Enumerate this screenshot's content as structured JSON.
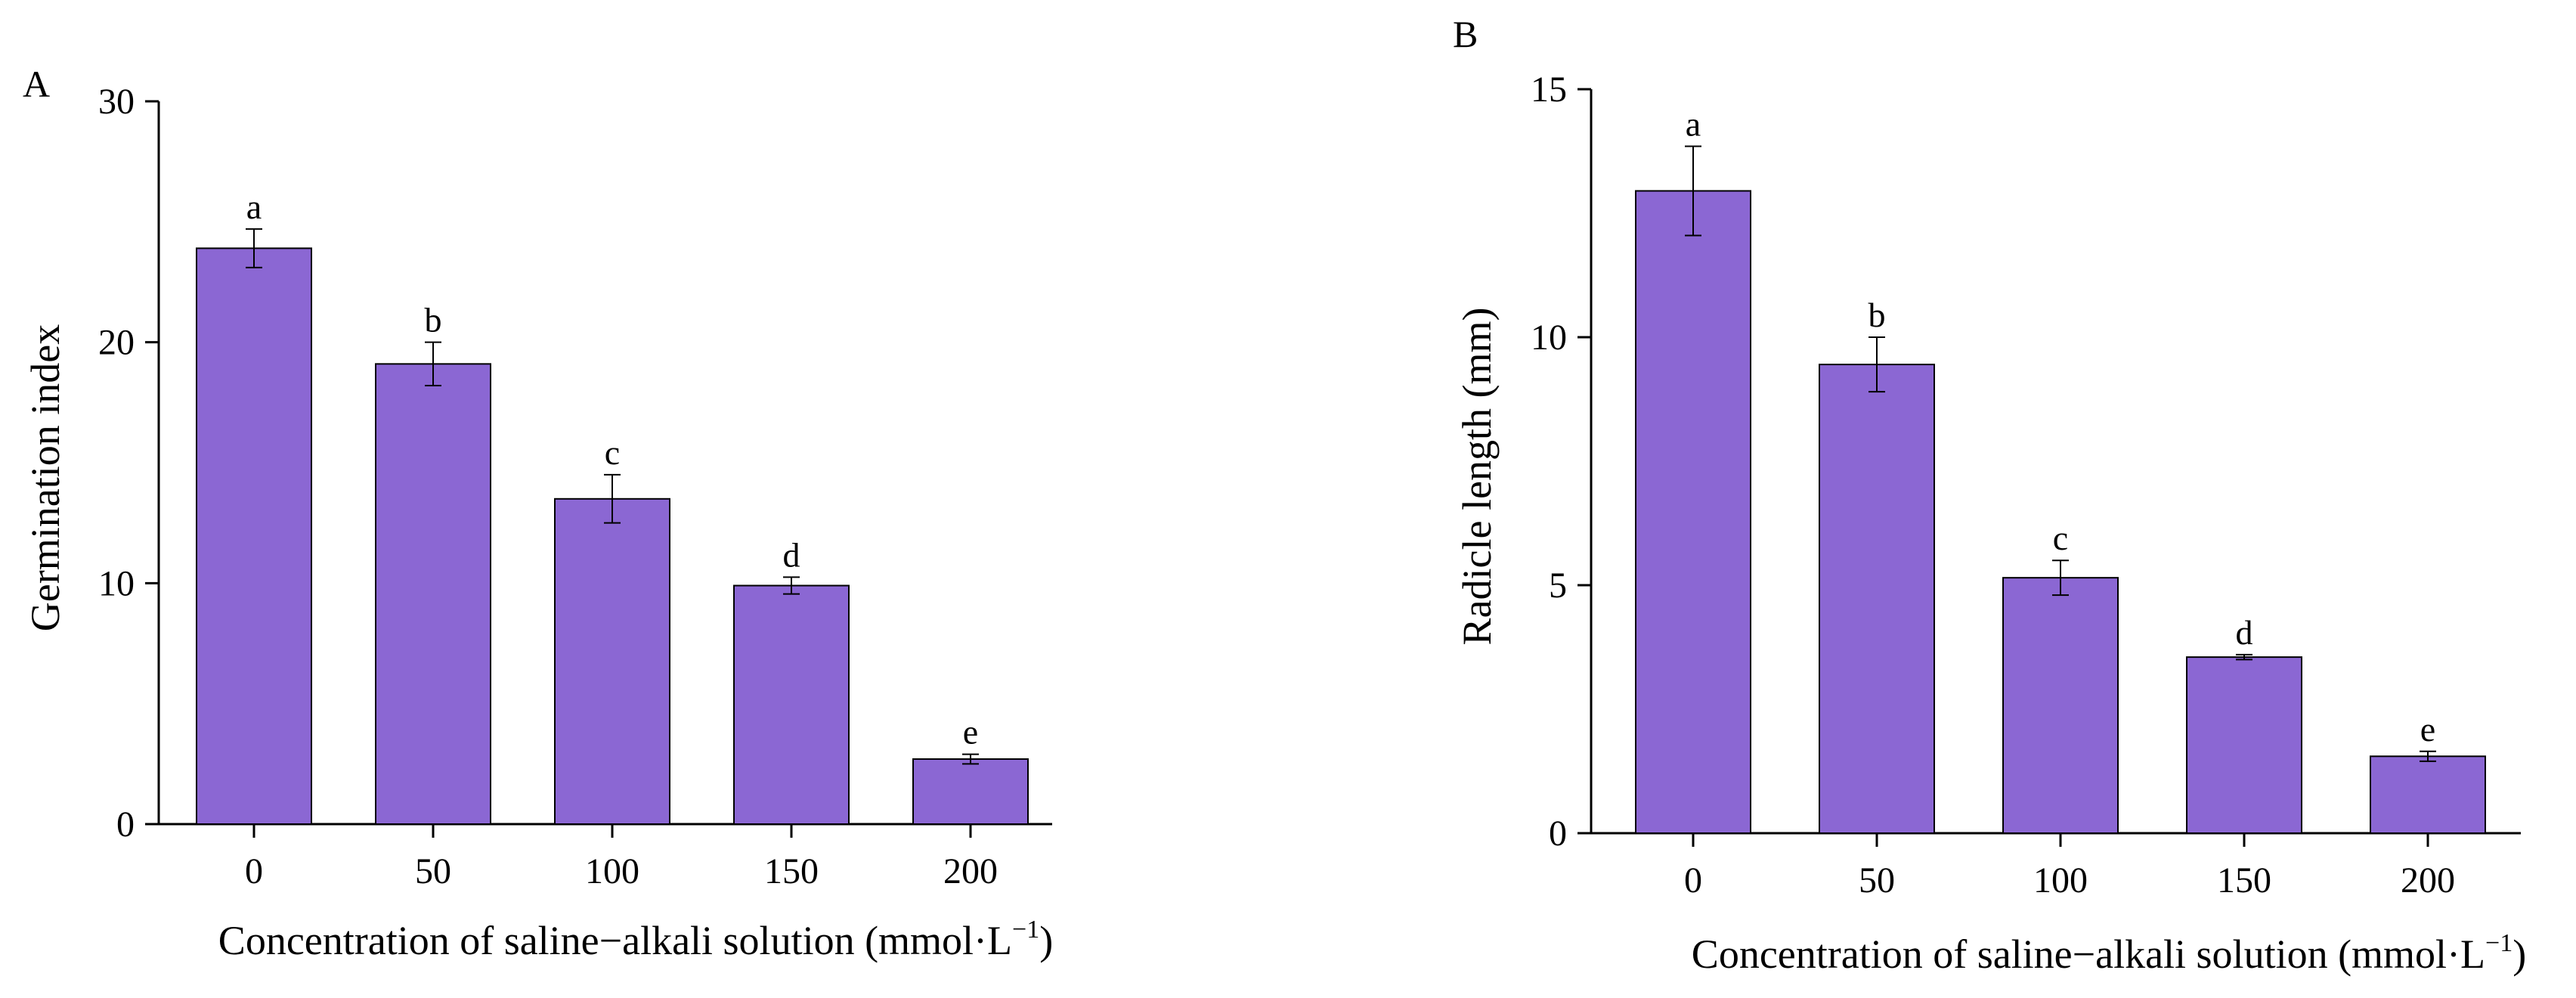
{
  "chart_data": [
    {
      "panel": "A",
      "type": "bar",
      "categories": [
        "0",
        "50",
        "100",
        "150",
        "200"
      ],
      "values": [
        23.9,
        19.1,
        13.5,
        9.9,
        2.7
      ],
      "errors": [
        0.8,
        0.9,
        1.0,
        0.35,
        0.2
      ],
      "significance": [
        "a",
        "b",
        "c",
        "d",
        "e"
      ],
      "ylim": [
        0,
        30
      ],
      "yticks": [
        0,
        10,
        20,
        30
      ],
      "ylabel": "Germination index",
      "xlabel": "Concentration of saline−alkali solution (mmol·L",
      "xlabel_sup": "−1",
      "xlabel_end": ")",
      "bar_color": "#8b67d3"
    },
    {
      "panel": "B",
      "type": "bar",
      "categories": [
        "0",
        "50",
        "100",
        "150",
        "200"
      ],
      "values": [
        12.95,
        9.45,
        5.15,
        3.55,
        1.55
      ],
      "errors": [
        0.9,
        0.55,
        0.35,
        0.05,
        0.1
      ],
      "significance": [
        "a",
        "b",
        "c",
        "d",
        "e"
      ],
      "ylim": [
        0,
        15
      ],
      "yticks": [
        0,
        5,
        10,
        15
      ],
      "ylabel": "Radicle length (mm)",
      "xlabel": "Concentration of saline−alkali solution (mmol·L",
      "xlabel_sup": "−1",
      "xlabel_end": ")",
      "bar_color": "#8b67d3"
    }
  ]
}
